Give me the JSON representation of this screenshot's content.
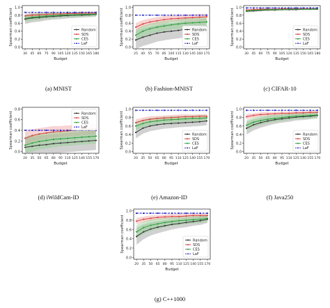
{
  "figure": {
    "captions": [
      "(a) MNIST",
      "(b) Fashion-MNIST",
      "(c) CIFAR-10",
      "(d) iWildCam-ID",
      "(e) Amazon-ID",
      "(f) Java250",
      "(g) C++1000"
    ]
  },
  "colors": {
    "Random": "#333333",
    "SDS": "#d94040",
    "CES": "#2e9e3a",
    "LaF": "#3030c8",
    "Random_band": "#9a9a9a",
    "SDS_band": "#f2a0a0",
    "CES_band": "#8fd18f"
  },
  "chart_data": [
    {
      "type": "line",
      "caption": "(a) MNIST",
      "xlabel": "Budget",
      "ylabel": "Spearman coefficient",
      "ylim": [
        0.0,
        1.0
      ],
      "yticks": [
        "0.0",
        "0.2",
        "0.4",
        "0.6",
        "0.8",
        "1.0"
      ],
      "xticks": [
        30,
        45,
        60,
        75,
        90,
        105,
        120,
        135,
        150,
        165,
        180
      ],
      "legend": "bottom-right",
      "x": [
        30,
        45,
        60,
        75,
        90,
        105,
        120,
        135,
        150,
        165,
        180
      ],
      "series": [
        {
          "name": "Random",
          "values": [
            0.7,
            0.73,
            0.74,
            0.76,
            0.77,
            0.78,
            0.79,
            0.8,
            0.8,
            0.81,
            0.82
          ],
          "spread": [
            0.12,
            0.11,
            0.1,
            0.09,
            0.08,
            0.08,
            0.07,
            0.07,
            0.06,
            0.06,
            0.06
          ]
        },
        {
          "name": "SDS",
          "values": [
            0.78,
            0.8,
            0.81,
            0.82,
            0.83,
            0.83,
            0.84,
            0.84,
            0.85,
            0.85,
            0.85
          ],
          "spread": [
            0.06,
            0.05,
            0.05,
            0.05,
            0.04,
            0.04,
            0.04,
            0.04,
            0.04,
            0.04,
            0.04
          ]
        },
        {
          "name": "CES",
          "values": [
            0.72,
            0.75,
            0.77,
            0.78,
            0.79,
            0.8,
            0.81,
            0.81,
            0.82,
            0.82,
            0.83
          ],
          "spread": [
            0.09,
            0.08,
            0.08,
            0.07,
            0.07,
            0.06,
            0.06,
            0.06,
            0.05,
            0.05,
            0.05
          ]
        },
        {
          "name": "LaF",
          "values": [
            0.87,
            0.87,
            0.87,
            0.87,
            0.87,
            0.87,
            0.87,
            0.87,
            0.87,
            0.87,
            0.87
          ],
          "spread": [
            0,
            0,
            0,
            0,
            0,
            0,
            0,
            0,
            0,
            0,
            0
          ]
        }
      ]
    },
    {
      "type": "line",
      "caption": "(b) Fashion-MNIST",
      "xlabel": "Budget",
      "ylabel": "Spearman coefficient",
      "ylim": [
        0.0,
        1.0
      ],
      "yticks": [
        "0.0",
        "0.2",
        "0.4",
        "0.6",
        "0.8",
        "1.0"
      ],
      "xticks": [
        25,
        40,
        55,
        70,
        85,
        100,
        115,
        130,
        145,
        160,
        175
      ],
      "legend": "bottom-right",
      "x": [
        25,
        40,
        55,
        70,
        85,
        100,
        115,
        130,
        145,
        160,
        175
      ],
      "series": [
        {
          "name": "Random",
          "values": [
            0.18,
            0.25,
            0.3,
            0.35,
            0.38,
            0.4,
            0.42,
            0.45,
            0.47,
            0.5,
            0.52
          ],
          "spread": [
            0.22,
            0.22,
            0.22,
            0.21,
            0.21,
            0.2,
            0.2,
            0.2,
            0.19,
            0.19,
            0.19
          ]
        },
        {
          "name": "SDS",
          "values": [
            0.5,
            0.58,
            0.63,
            0.66,
            0.69,
            0.71,
            0.72,
            0.73,
            0.74,
            0.75,
            0.76
          ],
          "spread": [
            0.1,
            0.1,
            0.09,
            0.09,
            0.09,
            0.08,
            0.08,
            0.08,
            0.08,
            0.08,
            0.08
          ]
        },
        {
          "name": "CES",
          "values": [
            0.3,
            0.4,
            0.46,
            0.5,
            0.53,
            0.56,
            0.58,
            0.6,
            0.61,
            0.62,
            0.63
          ],
          "spread": [
            0.14,
            0.14,
            0.13,
            0.13,
            0.13,
            0.12,
            0.12,
            0.12,
            0.12,
            0.12,
            0.12
          ]
        },
        {
          "name": "LaF",
          "values": [
            0.8,
            0.8,
            0.8,
            0.8,
            0.8,
            0.8,
            0.8,
            0.8,
            0.8,
            0.8,
            0.8
          ],
          "spread": [
            0,
            0,
            0,
            0,
            0,
            0,
            0,
            0,
            0,
            0,
            0
          ]
        }
      ]
    },
    {
      "type": "line",
      "caption": "(c) CIFAR-10",
      "xlabel": "Budget",
      "ylabel": "Spearman coefficient",
      "ylim": [
        0.0,
        1.0
      ],
      "yticks": [
        "0.0",
        "0.2",
        "0.4",
        "0.6",
        "0.8",
        "1.0"
      ],
      "xticks": [
        30,
        45,
        60,
        75,
        90,
        105,
        120,
        135,
        150,
        165,
        180
      ],
      "legend": "bottom-right",
      "x": [
        30,
        45,
        60,
        75,
        90,
        105,
        120,
        135,
        150,
        165,
        180
      ],
      "series": [
        {
          "name": "Random",
          "values": [
            0.9,
            0.91,
            0.92,
            0.93,
            0.93,
            0.94,
            0.94,
            0.94,
            0.95,
            0.95,
            0.95
          ],
          "spread": [
            0.03,
            0.03,
            0.02,
            0.02,
            0.02,
            0.02,
            0.02,
            0.02,
            0.02,
            0.02,
            0.02
          ]
        },
        {
          "name": "SDS",
          "values": [
            0.93,
            0.94,
            0.95,
            0.95,
            0.95,
            0.96,
            0.96,
            0.96,
            0.96,
            0.96,
            0.96
          ],
          "spread": [
            0.02,
            0.02,
            0.02,
            0.02,
            0.02,
            0.01,
            0.01,
            0.01,
            0.01,
            0.01,
            0.01
          ]
        },
        {
          "name": "CES",
          "values": [
            0.91,
            0.92,
            0.93,
            0.94,
            0.94,
            0.94,
            0.95,
            0.95,
            0.95,
            0.95,
            0.96
          ],
          "spread": [
            0.03,
            0.02,
            0.02,
            0.02,
            0.02,
            0.02,
            0.02,
            0.02,
            0.02,
            0.02,
            0.02
          ]
        },
        {
          "name": "LaF",
          "values": [
            0.98,
            0.98,
            0.98,
            0.98,
            0.98,
            0.98,
            0.98,
            0.98,
            0.98,
            0.98,
            0.98
          ],
          "spread": [
            0,
            0,
            0,
            0,
            0,
            0,
            0,
            0,
            0,
            0,
            0
          ]
        }
      ]
    },
    {
      "type": "line",
      "caption": "(d) iWildCam-ID",
      "xlabel": "Budget",
      "ylabel": "Spearman coefficient",
      "ylim": [
        0.0,
        0.8
      ],
      "yticks": [
        "0.0",
        "0.2",
        "0.4",
        "0.6",
        "0.8"
      ],
      "xticks": [
        20,
        35,
        50,
        65,
        80,
        95,
        110,
        125,
        140,
        155,
        170
      ],
      "legend": "top-right",
      "x": [
        20,
        35,
        50,
        65,
        80,
        95,
        110,
        125,
        140,
        155,
        170
      ],
      "series": [
        {
          "name": "Random",
          "values": [
            0.08,
            0.1,
            0.12,
            0.13,
            0.15,
            0.16,
            0.17,
            0.18,
            0.19,
            0.2,
            0.21
          ],
          "spread": [
            0.18,
            0.18,
            0.18,
            0.18,
            0.18,
            0.18,
            0.18,
            0.18,
            0.18,
            0.18,
            0.18
          ]
        },
        {
          "name": "SDS",
          "values": [
            0.25,
            0.3,
            0.33,
            0.35,
            0.37,
            0.38,
            0.39,
            0.4,
            0.41,
            0.42,
            0.43
          ],
          "spread": [
            0.12,
            0.12,
            0.11,
            0.11,
            0.11,
            0.1,
            0.1,
            0.1,
            0.1,
            0.1,
            0.1
          ]
        },
        {
          "name": "CES",
          "values": [
            0.12,
            0.16,
            0.19,
            0.21,
            0.23,
            0.24,
            0.25,
            0.26,
            0.27,
            0.28,
            0.29
          ],
          "spread": [
            0.16,
            0.16,
            0.15,
            0.15,
            0.15,
            0.14,
            0.14,
            0.14,
            0.14,
            0.14,
            0.14
          ]
        },
        {
          "name": "LaF",
          "values": [
            0.4,
            0.4,
            0.4,
            0.4,
            0.4,
            0.4,
            0.4,
            0.4,
            0.4,
            0.4,
            0.4
          ],
          "spread": [
            0,
            0,
            0,
            0,
            0,
            0,
            0,
            0,
            0,
            0,
            0
          ]
        }
      ]
    },
    {
      "type": "line",
      "caption": "(e) Amazon-ID",
      "xlabel": "Budget",
      "ylabel": "Spearman coefficient",
      "ylim": [
        0.0,
        1.0
      ],
      "yticks": [
        "0.0",
        "0.2",
        "0.4",
        "0.6",
        "0.8",
        "1.0"
      ],
      "xticks": [
        20,
        35,
        50,
        65,
        80,
        95,
        110,
        125,
        140,
        155,
        170
      ],
      "legend": "bottom-right",
      "x": [
        20,
        35,
        50,
        65,
        80,
        95,
        110,
        125,
        140,
        155,
        170
      ],
      "series": [
        {
          "name": "Random",
          "values": [
            0.45,
            0.55,
            0.6,
            0.63,
            0.65,
            0.66,
            0.67,
            0.68,
            0.69,
            0.7,
            0.72
          ],
          "spread": [
            0.14,
            0.13,
            0.12,
            0.12,
            0.11,
            0.11,
            0.1,
            0.1,
            0.1,
            0.1,
            0.1
          ]
        },
        {
          "name": "SDS",
          "values": [
            0.68,
            0.73,
            0.76,
            0.78,
            0.79,
            0.8,
            0.81,
            0.82,
            0.82,
            0.83,
            0.83
          ],
          "spread": [
            0.08,
            0.07,
            0.07,
            0.06,
            0.06,
            0.06,
            0.06,
            0.06,
            0.05,
            0.05,
            0.05
          ]
        },
        {
          "name": "CES",
          "values": [
            0.6,
            0.66,
            0.7,
            0.72,
            0.74,
            0.75,
            0.76,
            0.77,
            0.78,
            0.78,
            0.79
          ],
          "spread": [
            0.1,
            0.09,
            0.09,
            0.08,
            0.08,
            0.08,
            0.07,
            0.07,
            0.07,
            0.07,
            0.07
          ]
        },
        {
          "name": "LaF",
          "values": [
            0.97,
            0.97,
            0.97,
            0.97,
            0.97,
            0.97,
            0.97,
            0.97,
            0.97,
            0.97,
            0.97
          ],
          "spread": [
            0,
            0,
            0,
            0,
            0,
            0,
            0,
            0,
            0,
            0,
            0
          ]
        }
      ]
    },
    {
      "type": "line",
      "caption": "(f) Java250",
      "xlabel": "Budget",
      "ylabel": "Spearman coefficient",
      "ylim": [
        0.0,
        1.0
      ],
      "yticks": [
        "0.0",
        "0.2",
        "0.4",
        "0.6",
        "0.8",
        "1.0"
      ],
      "xticks": [
        20,
        35,
        50,
        65,
        80,
        95,
        110,
        125,
        140,
        155,
        170
      ],
      "legend": "bottom-right",
      "x": [
        20,
        35,
        50,
        65,
        80,
        95,
        110,
        125,
        140,
        155,
        170
      ],
      "series": [
        {
          "name": "Random",
          "values": [
            0.55,
            0.63,
            0.68,
            0.72,
            0.75,
            0.77,
            0.79,
            0.81,
            0.82,
            0.83,
            0.85
          ],
          "spread": [
            0.15,
            0.13,
            0.12,
            0.11,
            0.1,
            0.09,
            0.09,
            0.08,
            0.08,
            0.07,
            0.07
          ]
        },
        {
          "name": "SDS",
          "values": [
            0.82,
            0.85,
            0.87,
            0.88,
            0.89,
            0.9,
            0.9,
            0.91,
            0.91,
            0.92,
            0.92
          ],
          "spread": [
            0.06,
            0.05,
            0.05,
            0.05,
            0.04,
            0.04,
            0.04,
            0.04,
            0.04,
            0.04,
            0.04
          ]
        },
        {
          "name": "CES",
          "values": [
            0.62,
            0.69,
            0.73,
            0.76,
            0.78,
            0.8,
            0.82,
            0.83,
            0.84,
            0.85,
            0.86
          ],
          "spread": [
            0.12,
            0.11,
            0.1,
            0.09,
            0.09,
            0.08,
            0.08,
            0.07,
            0.07,
            0.07,
            0.07
          ]
        },
        {
          "name": "LaF",
          "values": [
            0.97,
            0.97,
            0.97,
            0.97,
            0.97,
            0.97,
            0.97,
            0.97,
            0.97,
            0.97,
            0.97
          ],
          "spread": [
            0,
            0,
            0,
            0,
            0,
            0,
            0,
            0,
            0,
            0,
            0
          ]
        }
      ]
    },
    {
      "type": "line",
      "caption": "(g) C++1000",
      "xlabel": "Budget",
      "ylabel": "Spearman coefficient",
      "ylim": [
        0.0,
        1.0
      ],
      "yticks": [
        "0.0",
        "0.2",
        "0.4",
        "0.6",
        "0.8",
        "1.0"
      ],
      "xticks": [
        20,
        35,
        50,
        65,
        80,
        95,
        110,
        125,
        140,
        155,
        170
      ],
      "legend": "bottom-right",
      "x": [
        20,
        35,
        50,
        65,
        80,
        95,
        110,
        125,
        140,
        155,
        170
      ],
      "series": [
        {
          "name": "Random",
          "values": [
            0.45,
            0.55,
            0.61,
            0.65,
            0.68,
            0.71,
            0.73,
            0.75,
            0.77,
            0.79,
            0.82
          ],
          "spread": [
            0.18,
            0.16,
            0.14,
            0.13,
            0.12,
            0.11,
            0.1,
            0.1,
            0.09,
            0.09,
            0.08
          ]
        },
        {
          "name": "SDS",
          "values": [
            0.78,
            0.82,
            0.84,
            0.86,
            0.87,
            0.88,
            0.88,
            0.89,
            0.9,
            0.9,
            0.9
          ],
          "spread": [
            0.07,
            0.06,
            0.06,
            0.05,
            0.05,
            0.05,
            0.05,
            0.05,
            0.04,
            0.04,
            0.04
          ]
        },
        {
          "name": "CES",
          "values": [
            0.55,
            0.64,
            0.69,
            0.72,
            0.75,
            0.77,
            0.79,
            0.8,
            0.81,
            0.82,
            0.84
          ],
          "spread": [
            0.14,
            0.13,
            0.12,
            0.11,
            0.1,
            0.09,
            0.09,
            0.08,
            0.08,
            0.08,
            0.08
          ]
        },
        {
          "name": "LaF",
          "values": [
            0.95,
            0.95,
            0.95,
            0.95,
            0.95,
            0.95,
            0.95,
            0.95,
            0.95,
            0.95,
            0.95
          ],
          "spread": [
            0,
            0,
            0,
            0,
            0,
            0,
            0,
            0,
            0,
            0,
            0
          ]
        }
      ]
    }
  ]
}
